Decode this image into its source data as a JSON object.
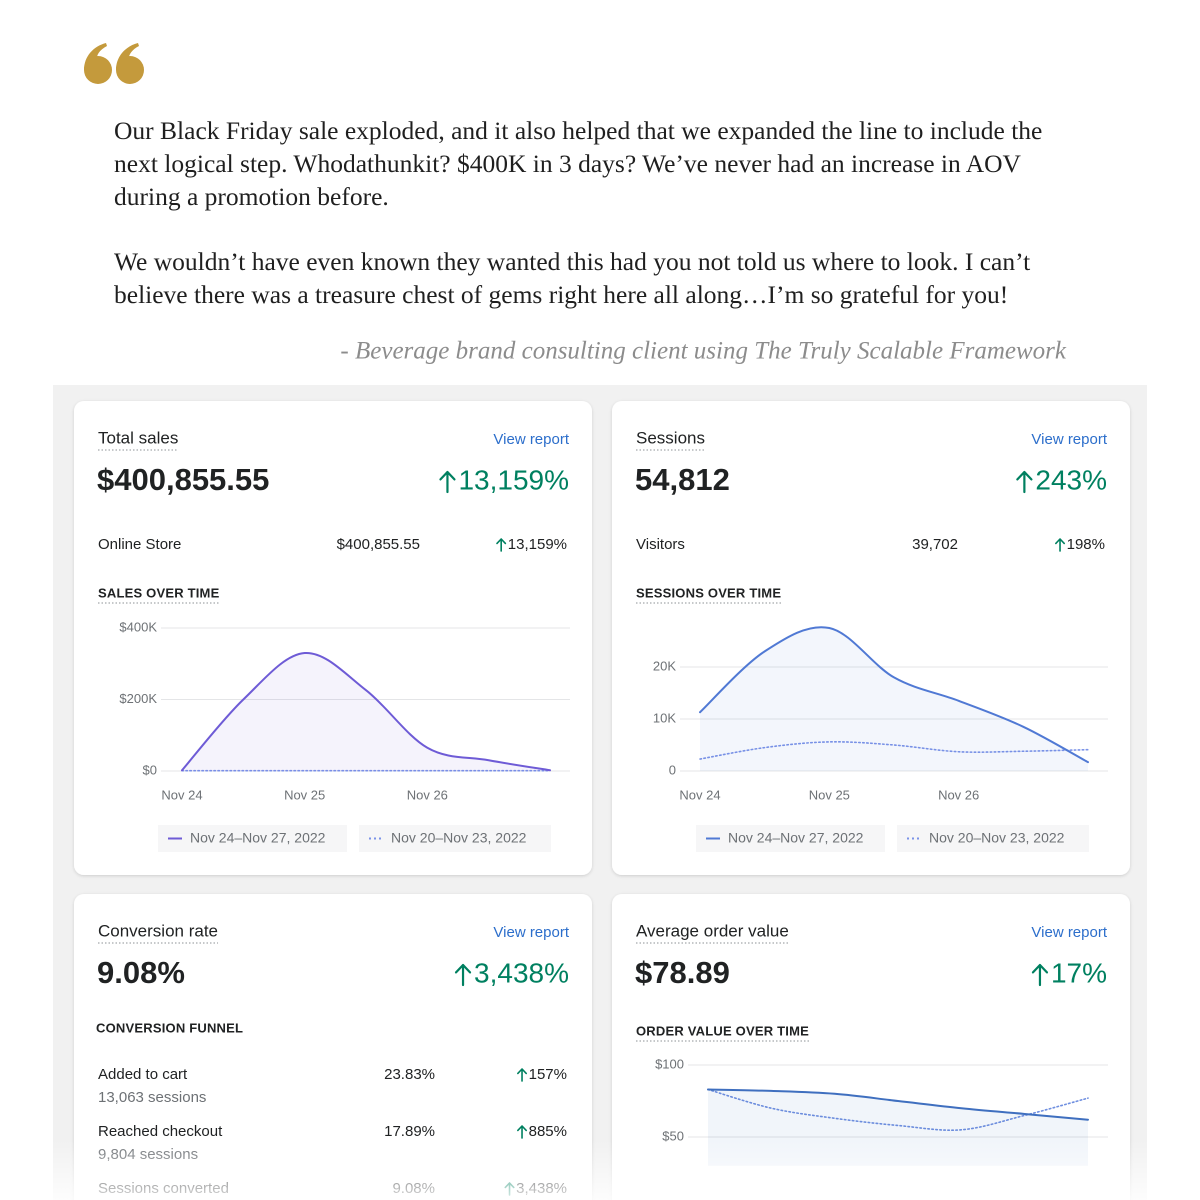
{
  "quote": {
    "paragraphs": [
      [
        "Our Black Friday sale exploded, and it also helped that we expanded the line to include the",
        "next logical step. Whodathunkit? $400K in 3 days? We’ve never had an increase in AOV",
        "during a promotion before."
      ],
      [
        "We wouldn’t have even known they wanted this had you not told us where to look. I can’t",
        "believe there was a treasure chest of gems right here all along…I’m so grateful for you!"
      ]
    ],
    "attribution": "-  Beverage brand consulting client using The Truly Scalable Framework"
  },
  "cards": [
    {
      "title": "Total sales",
      "link": "View report",
      "value": "$400,855.55",
      "change": "13,159%",
      "breakdown": [
        {
          "label": "Online Store",
          "value": "$400,855.55",
          "change": "13,159%"
        }
      ],
      "chart_data": {
        "type": "line",
        "title": "SALES OVER TIME",
        "categories": [
          "Nov 24",
          null,
          "Nov 25",
          null,
          "Nov 26",
          null,
          null
        ],
        "series": [
          {
            "name": "Nov 24–Nov 27, 2022",
            "color": "#6e5bd6",
            "style": "solid",
            "values": [
              2000,
              200000,
              330000,
              226000,
              65000,
              30000,
              2000
            ]
          },
          {
            "name": "Nov 20–Nov 23, 2022",
            "color": "#7b93e8",
            "style": "dotted",
            "values": [
              800,
              800,
              800,
              800,
              800,
              800,
              800
            ]
          }
        ],
        "ylim": [
          0,
          400000
        ],
        "yticks": [
          {
            "value": 0,
            "label": "$0"
          },
          {
            "value": 200000,
            "label": "$200K"
          },
          {
            "value": 400000,
            "label": "$400K"
          }
        ],
        "grid": true
      }
    },
    {
      "title": "Sessions",
      "link": "View report",
      "value": "54,812",
      "change": "243%",
      "breakdown": [
        {
          "label": "Visitors",
          "value": "39,702",
          "change": "198%"
        }
      ],
      "chart_data": {
        "type": "line",
        "title": "SESSIONS OVER TIME",
        "categories": [
          "Nov 24",
          null,
          "Nov 25",
          null,
          "Nov 26",
          null,
          null
        ],
        "series": [
          {
            "name": "Nov 24–Nov 27, 2022",
            "color": "#5079d4",
            "style": "solid",
            "values": [
              11300,
              23000,
              27500,
              18000,
              13500,
              8500,
              1700
            ]
          },
          {
            "name": "Nov 20–Nov 23, 2022",
            "color": "#7b93e8",
            "style": "dotted",
            "values": [
              2300,
              4500,
              5600,
              5000,
              3700,
              3800,
              4100
            ]
          }
        ],
        "ylim": [
          0,
          30000
        ],
        "yticks": [
          0,
          {
            "value": 10000,
            "label": "10K"
          },
          {
            "value": 20000,
            "label": "20K"
          }
        ],
        "grid": true
      }
    },
    {
      "title": "Conversion rate",
      "link": "View report",
      "value": "9.08%",
      "change": "3,438%",
      "funnel": {
        "title": "CONVERSION FUNNEL",
        "rows": [
          {
            "label": "Added to cart",
            "sessions": "13,063 sessions",
            "rate": "23.83%",
            "change": "157%"
          },
          {
            "label": "Reached checkout",
            "sessions": "9,804 sessions",
            "rate": "17.89%",
            "change": "885%"
          },
          {
            "label": "Sessions converted",
            "rate": "9.08%",
            "change": "3,438%"
          }
        ]
      }
    },
    {
      "title": "Average order value",
      "link": "View report",
      "value": "$78.89",
      "change": "17%",
      "chart_data": {
        "type": "line",
        "title": "ORDER VALUE OVER TIME",
        "categories": [
          null,
          null,
          null,
          null,
          null,
          null,
          null
        ],
        "series": [
          {
            "color": "#3f6fbf",
            "style": "solid",
            "values": [
              83,
              82,
              80,
              75,
              70,
              66,
              62
            ]
          },
          {
            "color": "#6f8fe0",
            "style": "dotted",
            "values": [
              83,
              70,
              63,
              58,
              55,
              65,
              77
            ]
          }
        ],
        "ylim": [
          30,
          105
        ],
        "yticks": [
          {
            "value": 50,
            "label": "$50"
          },
          {
            "value": 100,
            "label": "$100"
          }
        ],
        "grid": true
      }
    }
  ]
}
